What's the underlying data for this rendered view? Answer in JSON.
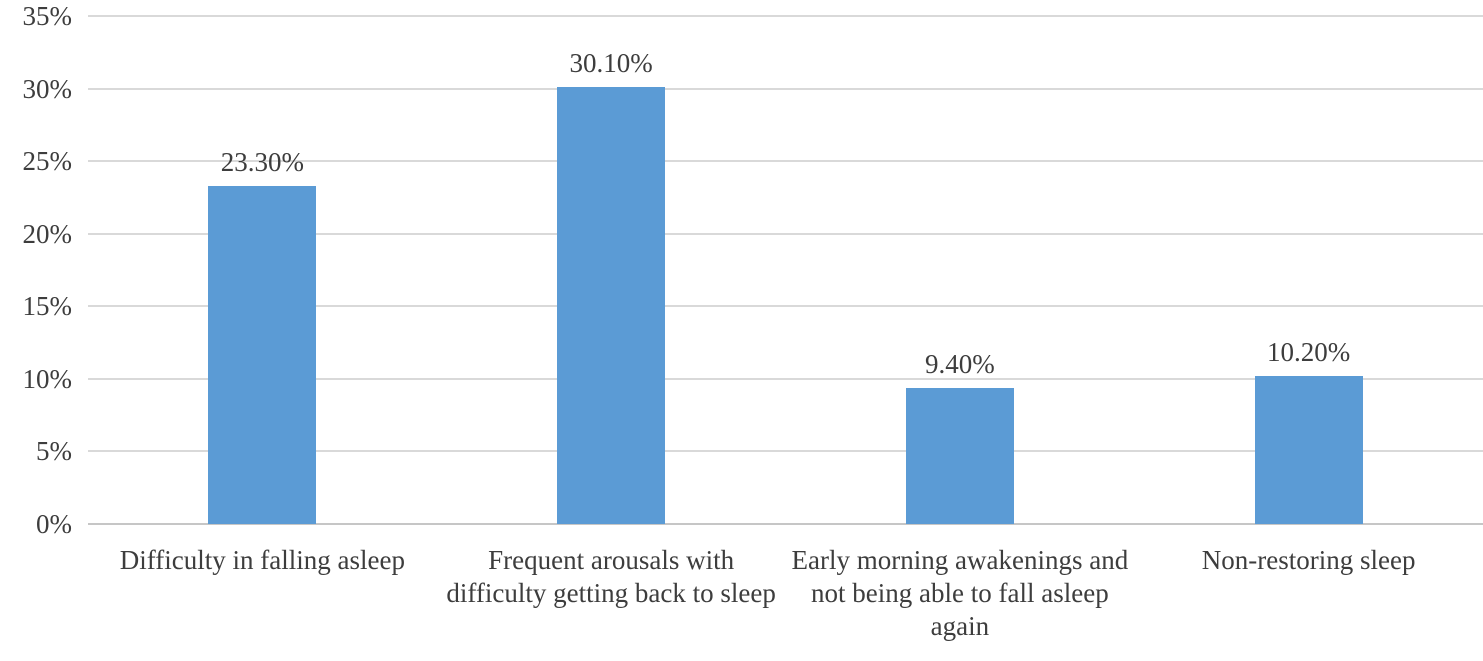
{
  "chart_data": {
    "type": "bar",
    "title": "",
    "xlabel": "",
    "ylabel": "",
    "categories": [
      "Difficulty in falling asleep",
      "Frequent arousals with difficulty getting back to sleep",
      "Early morning awakenings and not being able to fall asleep again",
      "Non-restoring sleep"
    ],
    "values": [
      23.3,
      30.1,
      9.4,
      10.2
    ],
    "data_labels": [
      "23.30%",
      "30.10%",
      "9.40%",
      "10.20%"
    ],
    "ylim": [
      0,
      35
    ],
    "ytick_step": 5,
    "ytick_labels": [
      "0%",
      "5%",
      "10%",
      "15%",
      "20%",
      "25%",
      "30%",
      "35%"
    ],
    "grid": true,
    "legend": false,
    "colors": {
      "bar": "#5B9BD5",
      "gridline": "#D9D9D9",
      "axis_line": "#C6C6C6",
      "text": "#3D3D3D",
      "background": "#FFFFFF"
    }
  }
}
